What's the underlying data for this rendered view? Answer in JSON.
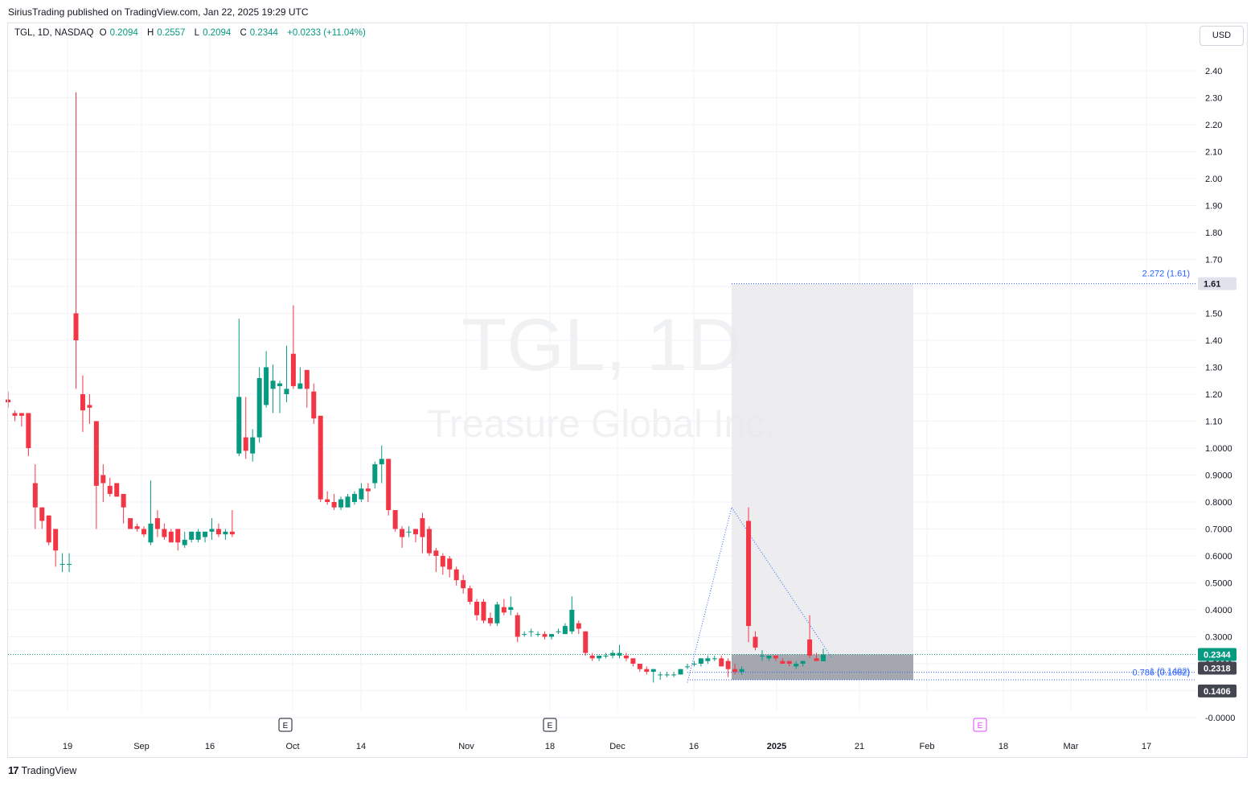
{
  "header": {
    "published_text": "SiriusTrading published on TradingView.com, Jan 22, 2025 19:29 UTC"
  },
  "legend": {
    "symbol_info": "TGL, 1D, NASDAQ",
    "open_label": "O",
    "open": "0.2094",
    "high_label": "H",
    "high": "0.2557",
    "low_label": "L",
    "low": "0.2094",
    "close_label": "C",
    "close": "0.2344",
    "change": "+0.0233 (+11.04%)"
  },
  "currency": "USD",
  "watermark": {
    "symbol": "TGL, 1D",
    "company": "Treasure Global Inc."
  },
  "footer": {
    "brand": "TradingView"
  },
  "colors": {
    "up": "#089981",
    "down": "#f23645",
    "grid": "#f0f3fa",
    "fib_line": "#2962ff",
    "target_box": "#9598a1"
  },
  "chart_data": {
    "type": "candlestick",
    "symbol": "TGL",
    "interval": "1D",
    "exchange": "NASDAQ",
    "y_scale": "log",
    "y_ticks": [
      "2.40",
      "2.30",
      "2.20",
      "2.10",
      "2.00",
      "1.90",
      "1.80",
      "1.70",
      "1.60",
      "1.50",
      "1.40",
      "1.30",
      "1.20",
      "1.10",
      "1.0000",
      "0.9000",
      "0.8000",
      "0.7000",
      "0.6000",
      "0.5000",
      "0.4000",
      "0.3000",
      "0.2000",
      "0.1000",
      "-0.0000"
    ],
    "x_ticks": [
      "19",
      "Sep",
      "16",
      "Oct",
      "14",
      "Nov",
      "18",
      "Dec",
      "16",
      "2025",
      "21",
      "Feb",
      "18",
      "Mar",
      "17"
    ],
    "earnings_markers": [
      "E",
      "E",
      "E"
    ],
    "price_labels": {
      "target": "1.61",
      "last": "0.2344",
      "level_a": "0.2318",
      "level_b": "0.1406",
      "level_c": "0.1400"
    },
    "fib_labels": {
      "upper": "2.272 (1.61)",
      "lower_a": "0.786 (0.1682)",
      "lower_b": "1 (0.1402)"
    },
    "candles": [
      {
        "o": 1.18,
        "h": 1.21,
        "l": 1.15,
        "c": 1.17
      },
      {
        "o": 1.13,
        "h": 1.14,
        "l": 1.1,
        "c": 1.12
      },
      {
        "o": 1.13,
        "h": 1.13,
        "l": 1.08,
        "c": 1.12
      },
      {
        "o": 1.13,
        "h": 1.13,
        "l": 0.97,
        "c": 1.0
      },
      {
        "o": 0.87,
        "h": 0.94,
        "l": 0.7,
        "c": 0.78
      },
      {
        "o": 0.78,
        "h": 0.78,
        "l": 0.7,
        "c": 0.73
      },
      {
        "o": 0.75,
        "h": 0.75,
        "l": 0.64,
        "c": 0.65
      },
      {
        "o": 0.7,
        "h": 0.7,
        "l": 0.56,
        "c": 0.62
      },
      {
        "o": 0.57,
        "h": 0.61,
        "l": 0.54,
        "c": 0.57
      },
      {
        "o": 0.57,
        "h": 0.61,
        "l": 0.54,
        "c": 0.57
      },
      {
        "o": 1.5,
        "h": 2.32,
        "l": 1.22,
        "c": 1.4
      },
      {
        "o": 1.2,
        "h": 1.27,
        "l": 1.06,
        "c": 1.14
      },
      {
        "o": 1.16,
        "h": 1.2,
        "l": 1.09,
        "c": 1.15
      },
      {
        "o": 1.1,
        "h": 1.1,
        "l": 0.7,
        "c": 0.86
      },
      {
        "o": 0.9,
        "h": 0.94,
        "l": 0.8,
        "c": 0.87
      },
      {
        "o": 0.86,
        "h": 0.89,
        "l": 0.82,
        "c": 0.83
      },
      {
        "o": 0.87,
        "h": 0.87,
        "l": 0.82,
        "c": 0.82
      },
      {
        "o": 0.83,
        "h": 0.83,
        "l": 0.72,
        "c": 0.78
      },
      {
        "o": 0.74,
        "h": 0.74,
        "l": 0.7,
        "c": 0.7
      },
      {
        "o": 0.71,
        "h": 0.72,
        "l": 0.69,
        "c": 0.7
      },
      {
        "o": 0.7,
        "h": 0.71,
        "l": 0.67,
        "c": 0.68
      },
      {
        "o": 0.65,
        "h": 0.88,
        "l": 0.64,
        "c": 0.72
      },
      {
        "o": 0.74,
        "h": 0.77,
        "l": 0.67,
        "c": 0.7
      },
      {
        "o": 0.7,
        "h": 0.72,
        "l": 0.66,
        "c": 0.67
      },
      {
        "o": 0.69,
        "h": 0.7,
        "l": 0.65,
        "c": 0.65
      },
      {
        "o": 0.7,
        "h": 0.7,
        "l": 0.62,
        "c": 0.65
      },
      {
        "o": 0.64,
        "h": 0.69,
        "l": 0.63,
        "c": 0.66
      },
      {
        "o": 0.66,
        "h": 0.69,
        "l": 0.65,
        "c": 0.69
      },
      {
        "o": 0.66,
        "h": 0.7,
        "l": 0.65,
        "c": 0.69
      },
      {
        "o": 0.67,
        "h": 0.69,
        "l": 0.65,
        "c": 0.69
      },
      {
        "o": 0.69,
        "h": 0.74,
        "l": 0.66,
        "c": 0.7
      },
      {
        "o": 0.7,
        "h": 0.72,
        "l": 0.67,
        "c": 0.68
      },
      {
        "o": 0.68,
        "h": 0.7,
        "l": 0.66,
        "c": 0.69
      },
      {
        "o": 0.69,
        "h": 0.77,
        "l": 0.67,
        "c": 0.68
      },
      {
        "o": 0.98,
        "h": 1.48,
        "l": 0.97,
        "c": 1.19
      },
      {
        "o": 1.04,
        "h": 1.19,
        "l": 0.96,
        "c": 0.99
      },
      {
        "o": 0.98,
        "h": 1.07,
        "l": 0.95,
        "c": 1.04
      },
      {
        "o": 1.04,
        "h": 1.3,
        "l": 1.02,
        "c": 1.26
      },
      {
        "o": 1.16,
        "h": 1.36,
        "l": 1.15,
        "c": 1.3
      },
      {
        "o": 1.22,
        "h": 1.31,
        "l": 1.13,
        "c": 1.25
      },
      {
        "o": 1.23,
        "h": 1.25,
        "l": 1.13,
        "c": 1.24
      },
      {
        "o": 1.2,
        "h": 1.38,
        "l": 1.17,
        "c": 1.22
      },
      {
        "o": 1.35,
        "h": 1.53,
        "l": 1.22,
        "c": 1.23
      },
      {
        "o": 1.22,
        "h": 1.3,
        "l": 1.22,
        "c": 1.24
      },
      {
        "o": 1.29,
        "h": 1.29,
        "l": 1.15,
        "c": 1.22
      },
      {
        "o": 1.21,
        "h": 1.24,
        "l": 1.09,
        "c": 1.11
      },
      {
        "o": 1.12,
        "h": 1.12,
        "l": 0.8,
        "c": 0.81
      },
      {
        "o": 0.81,
        "h": 0.84,
        "l": 0.79,
        "c": 0.8
      },
      {
        "o": 0.8,
        "h": 0.83,
        "l": 0.77,
        "c": 0.78
      },
      {
        "o": 0.78,
        "h": 0.82,
        "l": 0.77,
        "c": 0.81
      },
      {
        "o": 0.78,
        "h": 0.83,
        "l": 0.78,
        "c": 0.82
      },
      {
        "o": 0.8,
        "h": 0.84,
        "l": 0.79,
        "c": 0.83
      },
      {
        "o": 0.81,
        "h": 0.87,
        "l": 0.8,
        "c": 0.85
      },
      {
        "o": 0.85,
        "h": 0.87,
        "l": 0.8,
        "c": 0.84
      },
      {
        "o": 0.87,
        "h": 0.95,
        "l": 0.85,
        "c": 0.94
      },
      {
        "o": 0.94,
        "h": 1.01,
        "l": 0.87,
        "c": 0.96
      },
      {
        "o": 0.96,
        "h": 0.96,
        "l": 0.75,
        "c": 0.77
      },
      {
        "o": 0.77,
        "h": 0.77,
        "l": 0.69,
        "c": 0.7
      },
      {
        "o": 0.7,
        "h": 0.71,
        "l": 0.63,
        "c": 0.67
      },
      {
        "o": 0.69,
        "h": 0.71,
        "l": 0.67,
        "c": 0.69
      },
      {
        "o": 0.7,
        "h": 0.7,
        "l": 0.65,
        "c": 0.68
      },
      {
        "o": 0.74,
        "h": 0.76,
        "l": 0.61,
        "c": 0.67
      },
      {
        "o": 0.7,
        "h": 0.71,
        "l": 0.6,
        "c": 0.61
      },
      {
        "o": 0.62,
        "h": 0.63,
        "l": 0.54,
        "c": 0.6
      },
      {
        "o": 0.6,
        "h": 0.61,
        "l": 0.53,
        "c": 0.56
      },
      {
        "o": 0.59,
        "h": 0.6,
        "l": 0.52,
        "c": 0.55
      },
      {
        "o": 0.55,
        "h": 0.56,
        "l": 0.49,
        "c": 0.51
      },
      {
        "o": 0.51,
        "h": 0.53,
        "l": 0.46,
        "c": 0.48
      },
      {
        "o": 0.48,
        "h": 0.49,
        "l": 0.42,
        "c": 0.43
      },
      {
        "o": 0.43,
        "h": 0.44,
        "l": 0.36,
        "c": 0.38
      },
      {
        "o": 0.43,
        "h": 0.44,
        "l": 0.35,
        "c": 0.36
      },
      {
        "o": 0.37,
        "h": 0.39,
        "l": 0.34,
        "c": 0.35
      },
      {
        "o": 0.35,
        "h": 0.43,
        "l": 0.34,
        "c": 0.42
      },
      {
        "o": 0.41,
        "h": 0.44,
        "l": 0.38,
        "c": 0.39
      },
      {
        "o": 0.4,
        "h": 0.45,
        "l": 0.38,
        "c": 0.41
      },
      {
        "o": 0.38,
        "h": 0.39,
        "l": 0.28,
        "c": 0.3
      },
      {
        "o": 0.31,
        "h": 0.32,
        "l": 0.3,
        "c": 0.31
      },
      {
        "o": 0.32,
        "h": 0.33,
        "l": 0.3,
        "c": 0.32
      },
      {
        "o": 0.31,
        "h": 0.32,
        "l": 0.3,
        "c": 0.31
      },
      {
        "o": 0.31,
        "h": 0.32,
        "l": 0.29,
        "c": 0.3
      },
      {
        "o": 0.3,
        "h": 0.31,
        "l": 0.29,
        "c": 0.31
      },
      {
        "o": 0.32,
        "h": 0.33,
        "l": 0.31,
        "c": 0.32
      },
      {
        "o": 0.31,
        "h": 0.35,
        "l": 0.31,
        "c": 0.34
      },
      {
        "o": 0.32,
        "h": 0.45,
        "l": 0.31,
        "c": 0.4
      },
      {
        "o": 0.35,
        "h": 0.36,
        "l": 0.31,
        "c": 0.33
      },
      {
        "o": 0.32,
        "h": 0.32,
        "l": 0.23,
        "c": 0.24
      },
      {
        "o": 0.23,
        "h": 0.24,
        "l": 0.21,
        "c": 0.22
      },
      {
        "o": 0.22,
        "h": 0.23,
        "l": 0.21,
        "c": 0.23
      },
      {
        "o": 0.23,
        "h": 0.24,
        "l": 0.22,
        "c": 0.23
      },
      {
        "o": 0.23,
        "h": 0.25,
        "l": 0.22,
        "c": 0.24
      },
      {
        "o": 0.23,
        "h": 0.27,
        "l": 0.22,
        "c": 0.24
      },
      {
        "o": 0.23,
        "h": 0.24,
        "l": 0.21,
        "c": 0.22
      },
      {
        "o": 0.22,
        "h": 0.22,
        "l": 0.19,
        "c": 0.2
      },
      {
        "o": 0.2,
        "h": 0.2,
        "l": 0.17,
        "c": 0.18
      },
      {
        "o": 0.18,
        "h": 0.19,
        "l": 0.16,
        "c": 0.17
      },
      {
        "o": 0.17,
        "h": 0.18,
        "l": 0.13,
        "c": 0.18
      },
      {
        "o": 0.16,
        "h": 0.17,
        "l": 0.14,
        "c": 0.16
      },
      {
        "o": 0.16,
        "h": 0.17,
        "l": 0.15,
        "c": 0.16
      },
      {
        "o": 0.16,
        "h": 0.17,
        "l": 0.15,
        "c": 0.16
      },
      {
        "o": 0.16,
        "h": 0.18,
        "l": 0.16,
        "c": 0.18
      },
      {
        "o": 0.19,
        "h": 0.2,
        "l": 0.18,
        "c": 0.19
      },
      {
        "o": 0.2,
        "h": 0.21,
        "l": 0.19,
        "c": 0.2
      },
      {
        "o": 0.2,
        "h": 0.22,
        "l": 0.19,
        "c": 0.22
      },
      {
        "o": 0.21,
        "h": 0.23,
        "l": 0.2,
        "c": 0.22
      },
      {
        "o": 0.22,
        "h": 0.23,
        "l": 0.21,
        "c": 0.22
      },
      {
        "o": 0.22,
        "h": 0.23,
        "l": 0.19,
        "c": 0.19
      },
      {
        "o": 0.21,
        "h": 0.22,
        "l": 0.15,
        "c": 0.18
      },
      {
        "o": 0.18,
        "h": 0.2,
        "l": 0.16,
        "c": 0.17
      },
      {
        "o": 0.17,
        "h": 0.19,
        "l": 0.16,
        "c": 0.18
      },
      {
        "o": 0.73,
        "h": 0.78,
        "l": 0.28,
        "c": 0.34
      },
      {
        "o": 0.3,
        "h": 0.32,
        "l": 0.25,
        "c": 0.26
      },
      {
        "o": 0.23,
        "h": 0.25,
        "l": 0.21,
        "c": 0.23
      },
      {
        "o": 0.22,
        "h": 0.23,
        "l": 0.21,
        "c": 0.23
      },
      {
        "o": 0.23,
        "h": 0.23,
        "l": 0.21,
        "c": 0.22
      },
      {
        "o": 0.21,
        "h": 0.22,
        "l": 0.2,
        "c": 0.2
      },
      {
        "o": 0.21,
        "h": 0.21,
        "l": 0.19,
        "c": 0.2
      },
      {
        "o": 0.19,
        "h": 0.21,
        "l": 0.18,
        "c": 0.2
      },
      {
        "o": 0.2,
        "h": 0.21,
        "l": 0.19,
        "c": 0.21
      },
      {
        "o": 0.29,
        "h": 0.38,
        "l": 0.22,
        "c": 0.23
      },
      {
        "o": 0.22,
        "h": 0.24,
        "l": 0.21,
        "c": 0.21
      },
      {
        "o": 0.2094,
        "h": 0.2557,
        "l": 0.2094,
        "c": 0.2344
      }
    ]
  }
}
